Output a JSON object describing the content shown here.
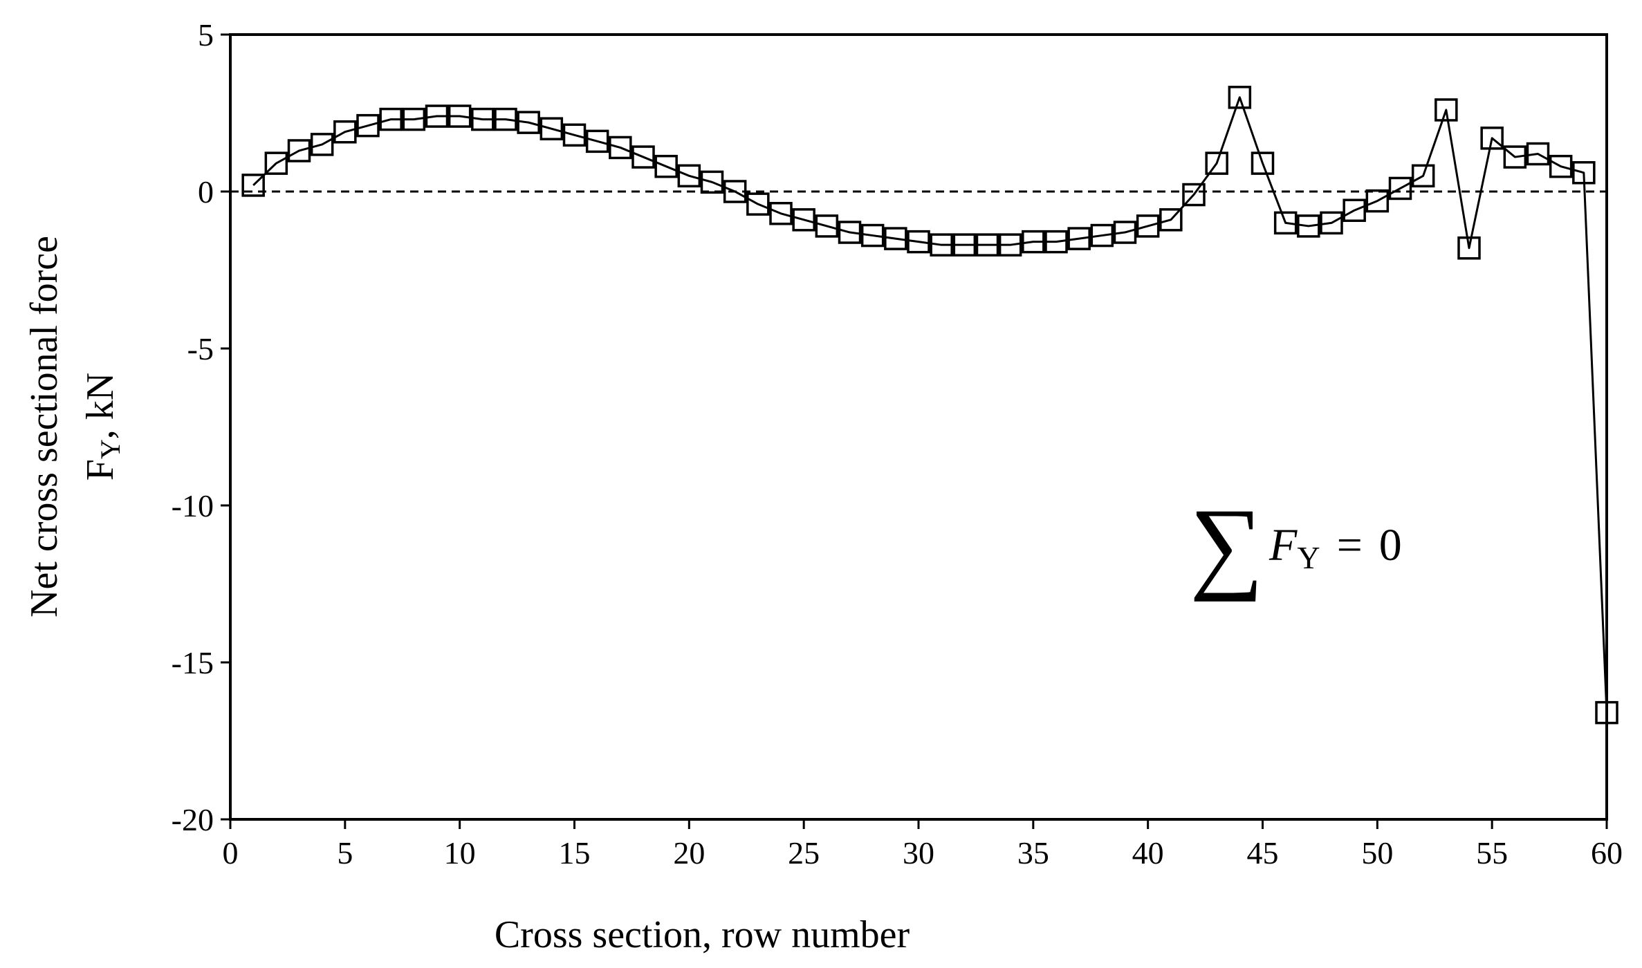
{
  "chart_data": {
    "type": "line",
    "title": "",
    "xlabel": "Cross section, row number",
    "ylabel_line1": "Net cross sectional force",
    "ylabel_symbol": "F",
    "ylabel_subscript": "Y",
    "ylabel_unit": ", kN",
    "xlim": [
      0,
      60
    ],
    "ylim": [
      -20,
      5
    ],
    "xticks": [
      0,
      5,
      10,
      15,
      20,
      25,
      30,
      35,
      40,
      45,
      50,
      55,
      60
    ],
    "yticks": [
      5,
      0,
      -5,
      -10,
      -15,
      -20
    ],
    "grid": false,
    "legend": "none",
    "zero_line": {
      "y": 0,
      "style": "dashed",
      "color": "#000000"
    },
    "series": [
      {
        "marker": "square-open",
        "color": "#000000",
        "x": [
          1,
          2,
          3,
          4,
          5,
          6,
          7,
          8,
          9,
          10,
          11,
          12,
          13,
          14,
          15,
          16,
          17,
          18,
          19,
          20,
          21,
          22,
          23,
          24,
          25,
          26,
          27,
          28,
          29,
          30,
          31,
          32,
          33,
          34,
          35,
          36,
          37,
          38,
          39,
          40,
          41,
          42,
          43,
          44,
          45,
          46,
          47,
          48,
          49,
          50,
          51,
          52,
          53,
          54,
          55,
          56,
          57,
          58,
          59,
          60
        ],
        "y": [
          0.2,
          0.9,
          1.3,
          1.5,
          1.9,
          2.1,
          2.3,
          2.3,
          2.4,
          2.4,
          2.3,
          2.3,
          2.2,
          2.0,
          1.8,
          1.6,
          1.4,
          1.1,
          0.8,
          0.5,
          0.3,
          0.0,
          -0.4,
          -0.7,
          -0.9,
          -1.1,
          -1.3,
          -1.4,
          -1.5,
          -1.6,
          -1.7,
          -1.7,
          -1.7,
          -1.7,
          -1.6,
          -1.6,
          -1.5,
          -1.4,
          -1.3,
          -1.1,
          -0.9,
          -0.1,
          0.9,
          3.0,
          0.9,
          -1.0,
          -1.1,
          -1.0,
          -0.6,
          -0.3,
          0.1,
          0.5,
          2.6,
          -1.8,
          1.7,
          1.1,
          1.2,
          0.8,
          0.6,
          -16.6
        ]
      }
    ],
    "annotation": {
      "sum_symbol": "∑",
      "variable": "F",
      "subscript": "Y",
      "equals": "=",
      "value": "0"
    }
  }
}
